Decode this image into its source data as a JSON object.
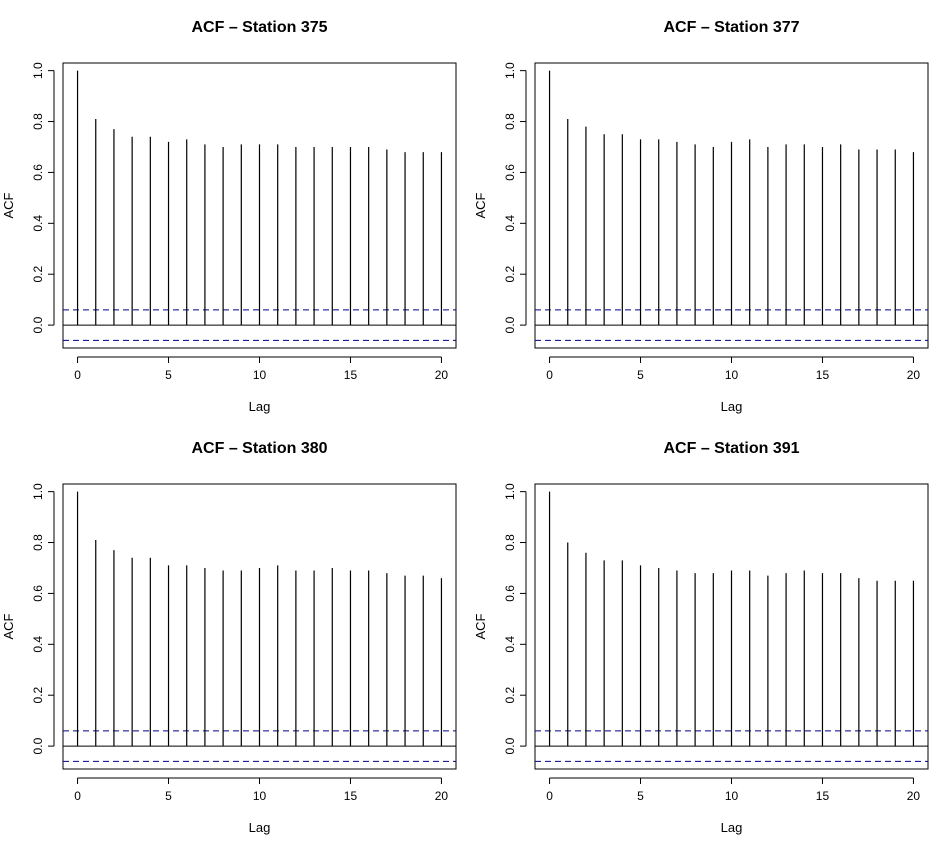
{
  "chart_data": [
    {
      "type": "bar",
      "title": "ACF – Station 375",
      "xlabel": "Lag",
      "ylabel": "ACF",
      "xlim": [
        -0.8,
        20.8
      ],
      "ylim": [
        -0.09,
        1.03
      ],
      "xticks": [
        0,
        5,
        10,
        15,
        20
      ],
      "yticks": [
        0.0,
        0.2,
        0.4,
        0.6,
        0.8,
        1.0
      ],
      "x": [
        0,
        1,
        2,
        3,
        4,
        5,
        6,
        7,
        8,
        9,
        10,
        11,
        12,
        13,
        14,
        15,
        16,
        17,
        18,
        19,
        20
      ],
      "values": [
        1.0,
        0.81,
        0.77,
        0.74,
        0.74,
        0.72,
        0.73,
        0.71,
        0.7,
        0.71,
        0.71,
        0.71,
        0.7,
        0.7,
        0.7,
        0.7,
        0.7,
        0.69,
        0.68,
        0.68,
        0.68
      ],
      "ci": 0.06,
      "ci_color": "#00008b",
      "bar_color": "#000000",
      "grid": false
    },
    {
      "type": "bar",
      "title": "ACF – Station 377",
      "xlabel": "Lag",
      "ylabel": "ACF",
      "xlim": [
        -0.8,
        20.8
      ],
      "ylim": [
        -0.09,
        1.03
      ],
      "xticks": [
        0,
        5,
        10,
        15,
        20
      ],
      "yticks": [
        0.0,
        0.2,
        0.4,
        0.6,
        0.8,
        1.0
      ],
      "x": [
        0,
        1,
        2,
        3,
        4,
        5,
        6,
        7,
        8,
        9,
        10,
        11,
        12,
        13,
        14,
        15,
        16,
        17,
        18,
        19,
        20
      ],
      "values": [
        1.0,
        0.81,
        0.78,
        0.75,
        0.75,
        0.73,
        0.73,
        0.72,
        0.71,
        0.7,
        0.72,
        0.73,
        0.7,
        0.71,
        0.71,
        0.7,
        0.71,
        0.69,
        0.69,
        0.69,
        0.68
      ],
      "ci": 0.06,
      "ci_color": "#00008b",
      "bar_color": "#000000",
      "grid": false
    },
    {
      "type": "bar",
      "title": "ACF – Station 380",
      "xlabel": "Lag",
      "ylabel": "ACF",
      "xlim": [
        -0.8,
        20.8
      ],
      "ylim": [
        -0.09,
        1.03
      ],
      "xticks": [
        0,
        5,
        10,
        15,
        20
      ],
      "yticks": [
        0.0,
        0.2,
        0.4,
        0.6,
        0.8,
        1.0
      ],
      "x": [
        0,
        1,
        2,
        3,
        4,
        5,
        6,
        7,
        8,
        9,
        10,
        11,
        12,
        13,
        14,
        15,
        16,
        17,
        18,
        19,
        20
      ],
      "values": [
        1.0,
        0.81,
        0.77,
        0.74,
        0.74,
        0.71,
        0.71,
        0.7,
        0.69,
        0.69,
        0.7,
        0.71,
        0.69,
        0.69,
        0.7,
        0.69,
        0.69,
        0.68,
        0.67,
        0.67,
        0.66
      ],
      "ci": 0.06,
      "ci_color": "#00008b",
      "bar_color": "#000000",
      "grid": false
    },
    {
      "type": "bar",
      "title": "ACF – Station 391",
      "xlabel": "Lag",
      "ylabel": "ACF",
      "xlim": [
        -0.8,
        20.8
      ],
      "ylim": [
        -0.09,
        1.03
      ],
      "xticks": [
        0,
        5,
        10,
        15,
        20
      ],
      "yticks": [
        0.0,
        0.2,
        0.4,
        0.6,
        0.8,
        1.0
      ],
      "x": [
        0,
        1,
        2,
        3,
        4,
        5,
        6,
        7,
        8,
        9,
        10,
        11,
        12,
        13,
        14,
        15,
        16,
        17,
        18,
        19,
        20
      ],
      "values": [
        1.0,
        0.8,
        0.76,
        0.73,
        0.73,
        0.71,
        0.7,
        0.69,
        0.68,
        0.68,
        0.69,
        0.69,
        0.67,
        0.68,
        0.69,
        0.68,
        0.68,
        0.66,
        0.65,
        0.65,
        0.65
      ],
      "ci": 0.06,
      "ci_color": "#00008b",
      "bar_color": "#000000",
      "grid": false
    }
  ]
}
